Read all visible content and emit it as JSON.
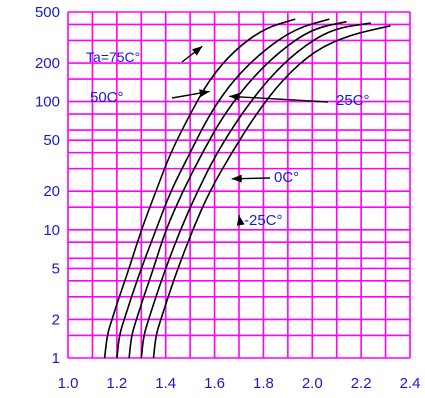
{
  "chart_data": {
    "type": "line",
    "title": "",
    "xlabel": "",
    "ylabel": "",
    "x_log": false,
    "y_log": true,
    "xlim": [
      1.0,
      2.4
    ],
    "ylim": [
      1,
      500
    ],
    "x_ticks": [
      {
        "value": 1.0,
        "label": "1.0"
      },
      {
        "value": 1.2,
        "label": "1.2"
      },
      {
        "value": 1.4,
        "label": "1.4"
      },
      {
        "value": 1.6,
        "label": "1.6"
      },
      {
        "value": 1.8,
        "label": "1.8"
      },
      {
        "value": 2.0,
        "label": "2.0"
      },
      {
        "value": 2.2,
        "label": "2.2"
      },
      {
        "value": 2.4,
        "label": "2.4"
      }
    ],
    "y_ticks": [
      {
        "value": 500,
        "label": "500"
      },
      {
        "value": 200,
        "label": "200"
      },
      {
        "value": 100,
        "label": "100"
      },
      {
        "value": 50,
        "label": "50"
      },
      {
        "value": 20,
        "label": "20"
      },
      {
        "value": 10,
        "label": "10"
      },
      {
        "value": 5,
        "label": "5"
      },
      {
        "value": 2,
        "label": "2"
      },
      {
        "value": 1,
        "label": "1"
      }
    ],
    "grid_color": "#ff00ff",
    "curve_color": "#000000",
    "text_color": "#1a1ad6",
    "series": [
      {
        "x": [
          1.15,
          1.16,
          1.18,
          1.21,
          1.25,
          1.3,
          1.36,
          1.42,
          1.5,
          1.58,
          1.68,
          1.8,
          1.93
        ],
        "y": [
          1,
          1.5,
          2,
          3,
          5,
          10,
          20,
          40,
          80,
          150,
          250,
          370,
          440
        ]
      },
      {
        "x": [
          1.2,
          1.21,
          1.23,
          1.26,
          1.3,
          1.36,
          1.42,
          1.5,
          1.58,
          1.68,
          1.8,
          1.93,
          2.07
        ],
        "y": [
          1,
          1.5,
          2,
          3,
          5,
          10,
          20,
          40,
          80,
          150,
          250,
          370,
          440
        ]
      },
      {
        "x": [
          1.25,
          1.26,
          1.28,
          1.31,
          1.35,
          1.4,
          1.47,
          1.55,
          1.64,
          1.75,
          1.87,
          2.0,
          2.14
        ],
        "y": [
          1,
          1.5,
          2,
          3,
          5,
          10,
          20,
          40,
          80,
          150,
          250,
          370,
          420
        ]
      },
      {
        "x": [
          1.3,
          1.31,
          1.33,
          1.36,
          1.4,
          1.46,
          1.53,
          1.61,
          1.71,
          1.82,
          1.94,
          2.08,
          2.24
        ],
        "y": [
          1,
          1.5,
          2,
          3,
          5,
          10,
          20,
          40,
          80,
          150,
          250,
          370,
          410
        ]
      },
      {
        "x": [
          1.35,
          1.36,
          1.38,
          1.41,
          1.45,
          1.51,
          1.58,
          1.67,
          1.77,
          1.88,
          2.01,
          2.15,
          2.32
        ],
        "y": [
          1,
          1.5,
          2,
          3,
          5,
          10,
          20,
          40,
          80,
          150,
          250,
          330,
          390
        ]
      }
    ],
    "annotations": [
      {
        "label": "Ta=75C°",
        "arrow_to": [
          1.55,
          270
        ],
        "size": 14
      },
      {
        "label": "50C°",
        "arrow_to": [
          1.58,
          120
        ],
        "size": 15
      },
      {
        "label": "25C°",
        "arrow_to": [
          1.66,
          110
        ],
        "size": 15
      },
      {
        "label": "0C°",
        "arrow_to": [
          1.67,
          25
        ],
        "size": 15
      },
      {
        "label": "-25C°",
        "arrow_to": [
          1.7,
          13
        ],
        "size": 15
      }
    ]
  }
}
